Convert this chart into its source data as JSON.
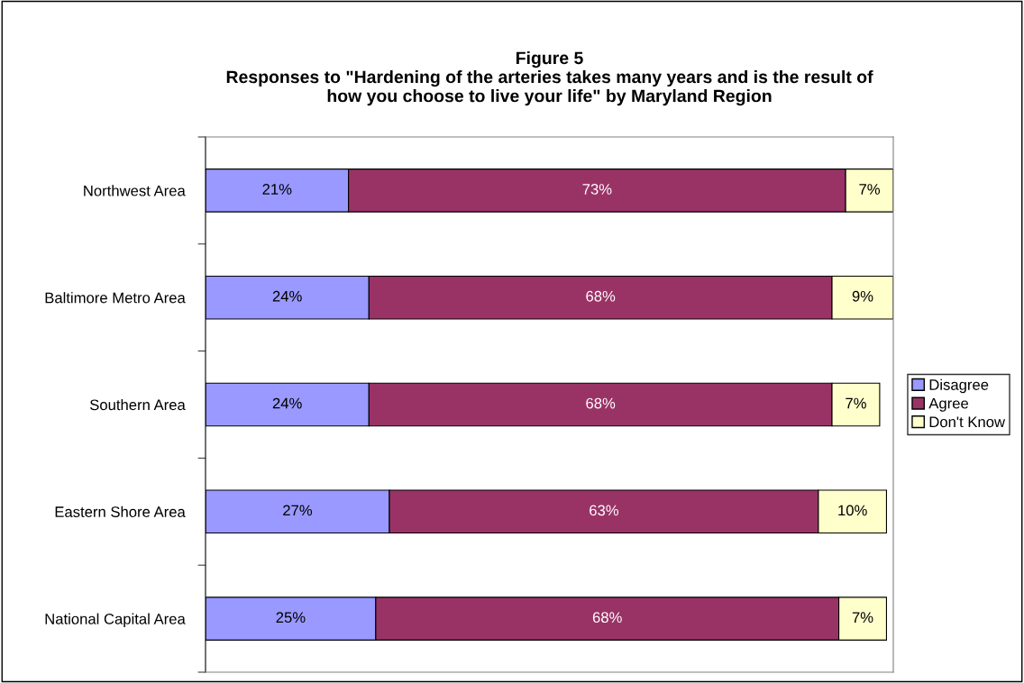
{
  "chart_data": {
    "type": "bar",
    "orientation": "horizontal",
    "stacked": true,
    "title": "Figure 5\nResponses to \"Hardening of the arteries takes many years and is the result of\nhow you choose to live your life\" by Maryland Region",
    "categories": [
      "Northwest Area",
      "Baltimore Metro Area",
      "Southern Area",
      "Eastern Shore Area",
      "National Capital Area"
    ],
    "series": [
      {
        "name": "Disagree",
        "color": "#9999ff",
        "values": [
          21,
          24,
          24,
          27,
          25
        ],
        "value_labels": [
          "21%",
          "24%",
          "24%",
          "27%",
          "25%"
        ]
      },
      {
        "name": "Agree",
        "color": "#993366",
        "values": [
          73,
          68,
          68,
          63,
          68
        ],
        "value_labels": [
          "73%",
          "68%",
          "68%",
          "63%",
          "68%"
        ]
      },
      {
        "name": "Don't Know",
        "color": "#ffffcc",
        "values": [
          7,
          9,
          7,
          10,
          7
        ],
        "value_labels": [
          "7%",
          "9%",
          "7%",
          "10%",
          "7%"
        ]
      }
    ],
    "legend": "right",
    "grid": false,
    "tick_labels": "y"
  }
}
